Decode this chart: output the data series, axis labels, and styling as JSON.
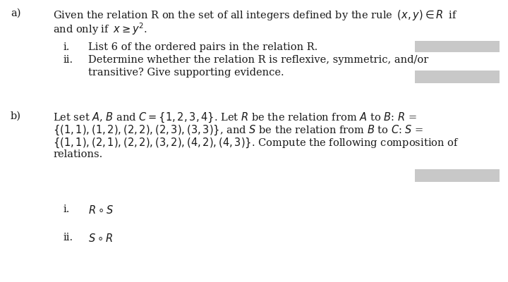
{
  "bg_color": "#ffffff",
  "text_color": "#1a1a1a",
  "box_color": "#c8c8c8",
  "label_a": "a)",
  "label_b": "b)",
  "line_a1": "Given the relation R on the set of all integers defined by the rule  $(x, y) \\in R$  if",
  "line_a2": "and only if  $x \\geq y^2$.",
  "sub_i_a": "i.",
  "sub_ii_a": "ii.",
  "text_i_a": "List 6 of the ordered pairs in the relation R.",
  "text_ii_a1": "Determine whether the relation R is reflexive, symmetric, and/or",
  "text_ii_a2": "transitive? Give supporting evidence.",
  "line_b1": "Let set $A$, $B$ and $C = \\{1, 2, 3, 4\\}$. Let $R$ be the relation from $A$ to $B$: $R$ =",
  "line_b2": "$\\{(1,1), (1,2), (2,2), (2,3), (3,3)\\}$, and $S$ be the relation from $B$ to $C$: $S$ =",
  "line_b3": "$\\{(1,1), (2,1), (2,2), (3,2), (4,2), (4,3)\\}$. Compute the following composition of",
  "line_b4": "relations.",
  "sub_i_b": "i.",
  "sub_ii_b": "ii.",
  "text_i_b": "$R \\circ S$",
  "text_ii_b": "$S \\circ R$",
  "font_size": 10.5
}
